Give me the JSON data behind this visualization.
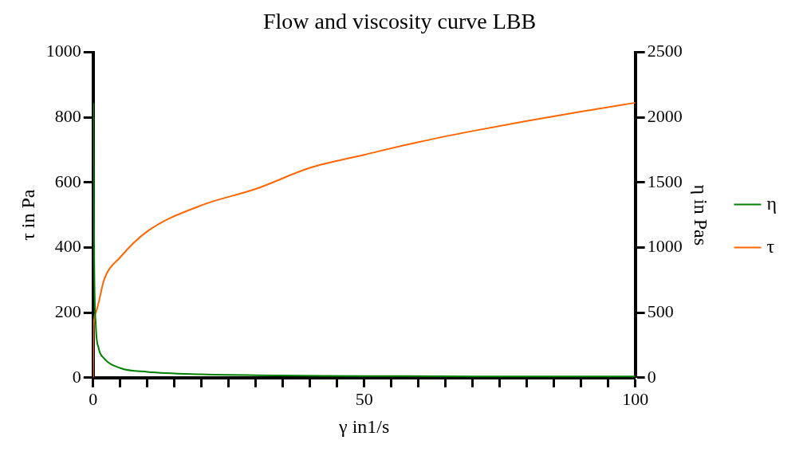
{
  "chart_data": {
    "type": "line",
    "title": "Flow and viscosity curve LBB",
    "xlabel": "γ in1/s",
    "ylabel": "τ in Pa",
    "y2label": "η in Pas",
    "xlim": [
      0,
      100
    ],
    "xticks": [
      0,
      {
        "value": 5,
        "label": null
      },
      {
        "value": 10,
        "label": null
      },
      {
        "value": 15,
        "label": null
      },
      {
        "value": 20,
        "label": null
      },
      {
        "value": 25,
        "label": null
      },
      {
        "value": 30,
        "label": null
      },
      {
        "value": 35,
        "label": null
      },
      {
        "value": 40,
        "label": null
      },
      {
        "value": 45,
        "label": null
      },
      50,
      {
        "value": 55,
        "label": null
      },
      {
        "value": 60,
        "label": null
      },
      {
        "value": 65,
        "label": null
      },
      {
        "value": 70,
        "label": null
      },
      {
        "value": 75,
        "label": null
      },
      {
        "value": 80,
        "label": null
      },
      {
        "value": 85,
        "label": null
      },
      {
        "value": 90,
        "label": null
      },
      {
        "value": 95,
        "label": null
      },
      100
    ],
    "ylim": [
      0,
      1000
    ],
    "yticks": [
      0,
      200,
      400,
      600,
      800,
      1000
    ],
    "y2lim": [
      0,
      2500
    ],
    "y2ticks": [
      0,
      500,
      1000,
      1500,
      2000,
      2500
    ],
    "grid": false,
    "legend": "right",
    "marker": "none",
    "line_style": "solid",
    "series": [
      {
        "name": "η",
        "color": "#008000",
        "axis": "y2",
        "x": [
          0.05,
          0.2,
          0.5,
          1,
          2,
          5,
          10,
          20,
          30,
          50,
          70,
          100
        ],
        "values": [
          2110,
          900,
          400,
          230,
          150,
          74,
          45,
          26,
          19,
          13,
          10,
          9
        ]
      },
      {
        "name": "τ",
        "color": "#ff6600",
        "axis": "y",
        "x": [
          0,
          0.05,
          0.2,
          0.5,
          1,
          2,
          5,
          10,
          20,
          30,
          40,
          50,
          60,
          70,
          80,
          90,
          100
        ],
        "values": [
          0,
          105,
          180,
          200,
          230,
          300,
          370,
          450,
          530,
          580,
          645,
          685,
          724,
          758,
          789,
          818,
          845
        ]
      }
    ]
  }
}
